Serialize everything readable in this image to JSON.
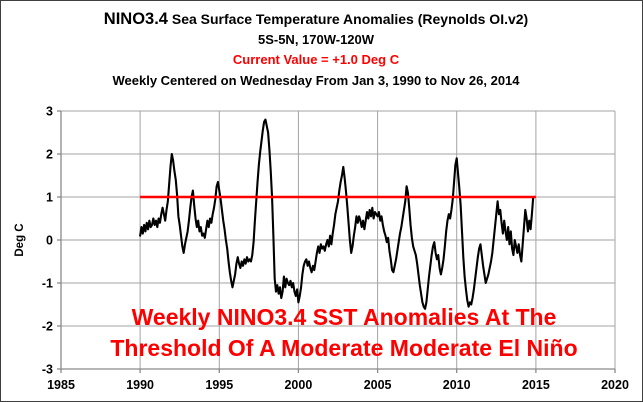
{
  "header": {
    "title_prefix": "NINO3.4",
    "title_rest": " Sea Surface Temperature Anomalies (Reynolds OI.v2)",
    "subtitle": "5S-5N, 170W-120W",
    "current_value": "Current Value = +1.0 Deg C",
    "date_range": "Weekly Centered on Wednesday From Jan 3, 1990 to Nov 26, 2014"
  },
  "annotation": {
    "line1": "Weekly NINO3.4 SST Anomalies At The",
    "line2": "Threshold Of A Moderate Moderate El Niño"
  },
  "colors": {
    "background": "#ffffff",
    "border": "#3f3f3f",
    "title_text": "#000000",
    "red_text": "#ff0000",
    "gridline": "#a3a3a3",
    "axis": "#8a8a8a",
    "series": "#000000",
    "threshold": "#ff0000"
  },
  "chart_data": {
    "type": "line",
    "title": "NINO3.4 Sea Surface Temperature Anomalies (Reynolds OI.v2)",
    "subtitle": "5S-5N, 170W-120W",
    "xlabel": "",
    "ylabel": "Deg C",
    "xlim": [
      1985,
      2020
    ],
    "ylim": [
      -3,
      3
    ],
    "x_ticks": [
      1985,
      1990,
      1995,
      2000,
      2005,
      2010,
      2015,
      2020
    ],
    "y_ticks": [
      3,
      2,
      1,
      0,
      -1,
      -2,
      -3
    ],
    "grid": true,
    "legend": "none",
    "threshold_line": {
      "value": 1.0,
      "x_start": 1990.0,
      "x_end": 2015.0
    },
    "series": [
      {
        "name": "Weekly NINO3.4 SST anomaly",
        "start_year": 1990.0,
        "points_per_year": 12,
        "end_label": "Nov 26, 2014",
        "current_value": 1.0,
        "values": [
          0.1,
          0.3,
          0.15,
          0.35,
          0.2,
          0.4,
          0.25,
          0.45,
          0.3,
          0.35,
          0.5,
          0.35,
          0.45,
          0.3,
          0.5,
          0.4,
          0.6,
          0.75,
          0.6,
          0.45,
          0.7,
          0.9,
          1.3,
          1.7,
          2.0,
          1.85,
          1.6,
          1.4,
          1.05,
          0.55,
          0.35,
          0.1,
          -0.15,
          -0.3,
          -0.1,
          0.05,
          0.2,
          0.45,
          0.75,
          1.0,
          1.15,
          0.8,
          0.5,
          0.3,
          0.45,
          0.2,
          0.3,
          0.1,
          0.15,
          0.05,
          0.25,
          0.45,
          0.3,
          0.5,
          0.4,
          0.6,
          0.75,
          0.95,
          1.25,
          1.35,
          1.15,
          0.95,
          0.7,
          0.45,
          0.25,
          0.0,
          -0.2,
          -0.5,
          -0.75,
          -0.95,
          -1.1,
          -0.95,
          -0.8,
          -0.55,
          -0.4,
          -0.55,
          -0.65,
          -0.5,
          -0.6,
          -0.45,
          -0.55,
          -0.4,
          -0.5,
          -0.45,
          -0.5,
          -0.35,
          -0.05,
          0.45,
          0.9,
          1.35,
          1.75,
          2.05,
          2.3,
          2.55,
          2.75,
          2.8,
          2.65,
          2.5,
          2.1,
          1.6,
          1.0,
          0.1,
          -0.9,
          -1.2,
          -1.05,
          -1.25,
          -1.1,
          -1.35,
          -1.2,
          -0.85,
          -1.1,
          -0.9,
          -1.0,
          -1.05,
          -0.95,
          -1.1,
          -1.0,
          -1.2,
          -1.3,
          -1.15,
          -1.45,
          -1.3,
          -1.1,
          -0.8,
          -0.6,
          -0.5,
          -0.45,
          -0.6,
          -0.5,
          -0.65,
          -0.75,
          -0.6,
          -0.7,
          -0.5,
          -0.3,
          -0.15,
          -0.3,
          -0.1,
          -0.2,
          -0.15,
          -0.25,
          -0.1,
          0.0,
          -0.15,
          0.1,
          -0.1,
          0.15,
          0.35,
          0.6,
          0.75,
          0.9,
          1.15,
          1.35,
          1.5,
          1.7,
          1.45,
          1.15,
          0.8,
          0.4,
          0.0,
          -0.3,
          -0.15,
          0.1,
          0.3,
          0.55,
          0.4,
          0.55,
          0.45,
          0.3,
          0.45,
          0.25,
          0.45,
          0.65,
          0.5,
          0.7,
          0.55,
          0.75,
          0.5,
          0.65,
          0.6,
          0.55,
          0.65,
          0.45,
          0.55,
          0.35,
          0.2,
          0.1,
          -0.05,
          0.05,
          -0.25,
          -0.45,
          -0.7,
          -0.75,
          -0.6,
          -0.45,
          -0.25,
          -0.05,
          0.15,
          0.3,
          0.5,
          0.7,
          0.9,
          1.25,
          1.1,
          0.75,
          0.35,
          0.05,
          -0.15,
          -0.25,
          -0.35,
          -0.55,
          -0.8,
          -1.05,
          -1.25,
          -1.45,
          -1.55,
          -1.6,
          -1.45,
          -1.15,
          -0.85,
          -0.6,
          -0.35,
          -0.15,
          -0.05,
          -0.3,
          -0.45,
          -0.35,
          -0.65,
          -0.8,
          -0.65,
          -0.45,
          -0.15,
          0.2,
          0.45,
          0.6,
          0.5,
          0.7,
          0.95,
          1.35,
          1.75,
          1.9,
          1.55,
          1.2,
          0.8,
          0.2,
          -0.4,
          -0.85,
          -1.15,
          -1.4,
          -1.55,
          -1.45,
          -1.5,
          -1.35,
          -1.15,
          -0.9,
          -0.65,
          -0.4,
          -0.2,
          -0.1,
          -0.35,
          -0.6,
          -0.8,
          -1.0,
          -0.9,
          -0.8,
          -0.65,
          -0.5,
          -0.3,
          0.0,
          0.3,
          0.6,
          0.9,
          0.6,
          0.7,
          0.4,
          0.15,
          0.45,
          0.2,
          0.0,
          0.3,
          -0.1,
          0.2,
          -0.2,
          -0.35,
          0.0,
          -0.15,
          -0.3,
          -0.1,
          -0.35,
          -0.5,
          -0.1,
          0.3,
          0.7,
          0.5,
          0.2,
          0.45,
          0.25,
          0.6,
          1.0
        ]
      }
    ]
  }
}
